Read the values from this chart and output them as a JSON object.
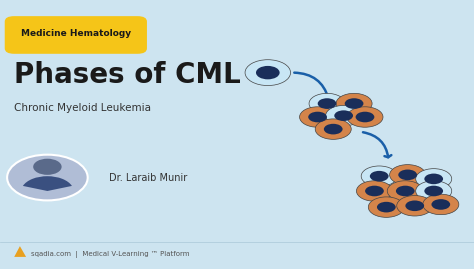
{
  "bg_color": "#cde4f0",
  "title": "Phases of CML",
  "subtitle": "Chronic Myeloid Leukemia",
  "badge_text": "Medicine Hematology",
  "badge_bg": "#f5c518",
  "badge_text_color": "#1a1a1a",
  "author": "Dr. Laraib Munir",
  "footer_text": "sqadia.com  |  Medical V-Learning ™ Platform",
  "title_color": "#1a1a1a",
  "subtitle_color": "#333333",
  "author_color": "#333333",
  "cell_outer_color": "#c8e6f5",
  "cell_inner_color": "#1a2e5a",
  "cell_orange_outer": "#d4844a",
  "cell_orange_inner": "#1a2e5a",
  "arrow_color": "#1a5fa8",
  "footer_color": "#555555",
  "footer_logo_color": "#e8a020"
}
